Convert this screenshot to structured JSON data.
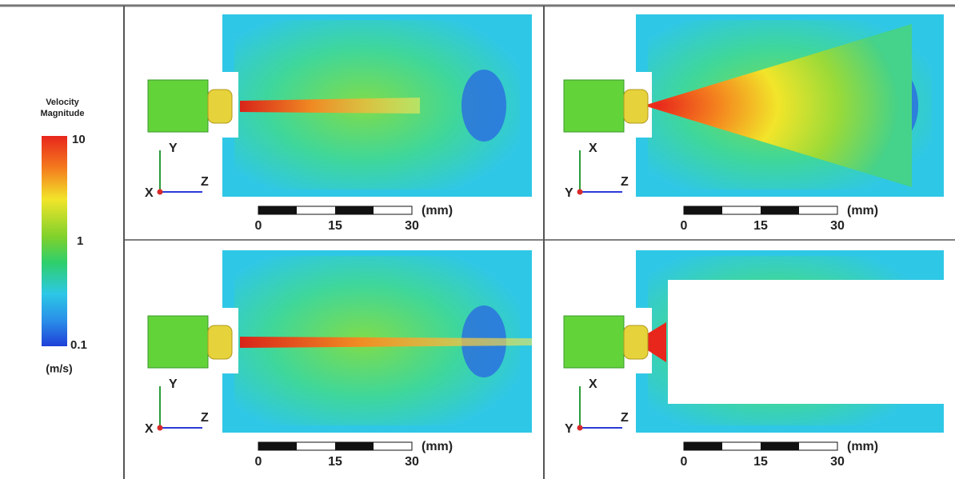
{
  "legend": {
    "title": [
      "Velocity",
      "Magnitude"
    ],
    "ticks": [
      "10",
      "1",
      "0.1"
    ],
    "unit": "(m/s)"
  },
  "panels": [
    {
      "axes": {
        "up": "Y",
        "right": "Z",
        "normal": "X"
      },
      "scale": {
        "ticks": [
          "0",
          "15",
          "30"
        ],
        "unit": "(mm)"
      }
    },
    {
      "axes": {
        "up": "X",
        "right": "Z",
        "normal": "Y"
      },
      "scale": {
        "ticks": [
          "0",
          "15",
          "30"
        ],
        "unit": "(mm)"
      }
    },
    {
      "axes": {
        "up": "Y",
        "right": "Z",
        "normal": "X"
      },
      "scale": {
        "ticks": [
          "0",
          "15",
          "30"
        ],
        "unit": "(mm)"
      }
    },
    {
      "axes": {
        "up": "X",
        "right": "Z",
        "normal": "Y"
      },
      "scale": {
        "ticks": [
          "0",
          "15",
          "30"
        ],
        "unit": "(mm)"
      }
    }
  ]
}
